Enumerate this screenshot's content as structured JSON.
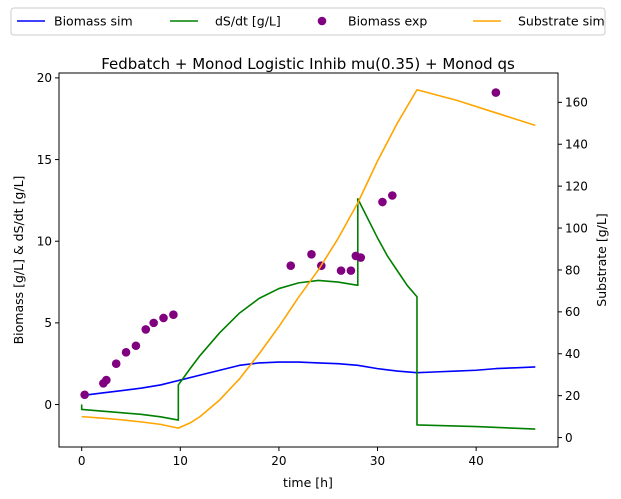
{
  "chart_data": {
    "type": "line",
    "title": "Fedbatch + Monod Logistic Inhib mu(0.35) + Monod qs",
    "xlabel": "time [h]",
    "ylabel_left": "Biomass [g/L] & dS/dt [g/L]",
    "ylabel_right": "Substrate [g/L]",
    "xlim": [
      -2.3,
      48.3
    ],
    "ylim_left": [
      -2.6,
      20.3
    ],
    "ylim_right": [
      -4.5,
      174
    ],
    "xticks": [
      0,
      10,
      20,
      30,
      40
    ],
    "yticks_left": [
      0,
      5,
      10,
      15,
      20
    ],
    "yticks_right": [
      0,
      20,
      40,
      60,
      80,
      100,
      120,
      140,
      160
    ],
    "grid": false,
    "legend_position": "top (outside, above plot)",
    "series": [
      {
        "name": "Biomass sim",
        "type": "line",
        "axis": "left",
        "color": "#0000ff",
        "x": [
          0,
          2,
          4,
          6,
          8,
          10,
          12,
          14,
          16,
          18,
          20,
          22,
          24,
          26,
          28,
          30,
          32,
          34,
          36,
          38,
          40,
          42,
          44,
          46
        ],
        "y": [
          0.55,
          0.7,
          0.85,
          1.0,
          1.2,
          1.5,
          1.8,
          2.1,
          2.4,
          2.55,
          2.6,
          2.6,
          2.55,
          2.5,
          2.4,
          2.2,
          2.05,
          1.95,
          2.0,
          2.05,
          2.1,
          2.2,
          2.25,
          2.3
        ]
      },
      {
        "name": "dS/dt [g/L]",
        "type": "line",
        "axis": "left",
        "color": "#008000",
        "x": [
          0,
          0,
          2,
          4,
          6,
          8,
          9.8,
          9.8,
          11,
          12,
          14,
          16,
          18,
          20,
          22,
          24,
          26,
          28,
          28,
          29,
          30,
          31,
          32,
          33,
          34,
          34,
          40,
          46
        ],
        "y": [
          0,
          -0.3,
          -0.4,
          -0.5,
          -0.6,
          -0.75,
          -0.95,
          1.2,
          2.2,
          3.0,
          4.4,
          5.6,
          6.5,
          7.1,
          7.45,
          7.6,
          7.5,
          7.3,
          12.6,
          11.4,
          10.2,
          9.1,
          8.2,
          7.3,
          6.6,
          -1.25,
          -1.35,
          -1.5
        ]
      },
      {
        "name": "Biomass exp",
        "type": "scatter",
        "axis": "left",
        "color": "#800080",
        "x": [
          0.3,
          2.2,
          2.5,
          3.5,
          4.5,
          5.5,
          6.5,
          7.3,
          8.3,
          9.3,
          21.2,
          23.3,
          24.3,
          26.3,
          27.3,
          27.8,
          28.3,
          30.5,
          31.5,
          42.0
        ],
        "y": [
          0.6,
          1.3,
          1.5,
          2.5,
          3.2,
          3.6,
          4.6,
          5.0,
          5.3,
          5.5,
          8.5,
          9.2,
          8.5,
          8.2,
          8.2,
          9.1,
          9.0,
          12.4,
          12.8,
          19.1
        ]
      },
      {
        "name": "Substrate sim",
        "type": "line",
        "axis": "right",
        "color": "#ffa500",
        "x": [
          0,
          2,
          4,
          6,
          8,
          9.8,
          11,
          12,
          14,
          16,
          18,
          20,
          22,
          24,
          26,
          28,
          30,
          32,
          34,
          38,
          42,
          46
        ],
        "y": [
          10,
          9.3,
          8.5,
          7.5,
          6.3,
          4.5,
          7,
          10,
          18,
          28,
          40,
          53,
          67,
          80,
          95,
          112,
          132,
          150,
          166,
          161,
          155,
          149
        ]
      }
    ]
  }
}
